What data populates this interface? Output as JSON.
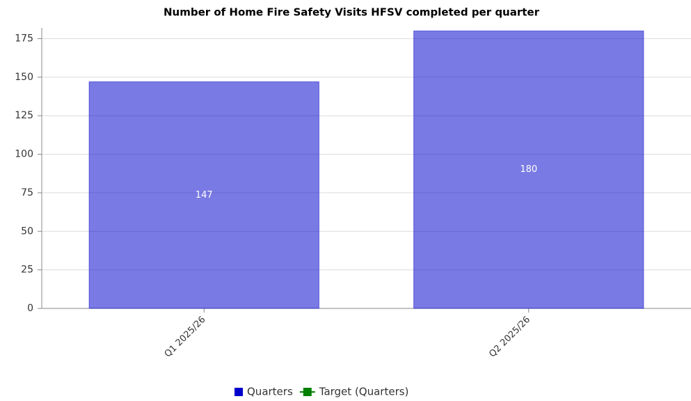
{
  "chart_data": {
    "type": "bar",
    "title": "Number of Home Fire Safety Visits HFSV completed per quarter",
    "categories": [
      "Q1 2025/26",
      "Q2 2025/26"
    ],
    "series": [
      {
        "name": "Quarters",
        "color": "#0000cc",
        "values": [
          147,
          180
        ]
      },
      {
        "name": "Target (Quarters)",
        "color": "#008000",
        "values": [
          null,
          null
        ]
      }
    ],
    "ylim": [
      0,
      182
    ],
    "yticks": [
      0,
      25,
      50,
      75,
      100,
      125,
      150,
      175
    ],
    "grid": true,
    "legend": "bottom"
  }
}
